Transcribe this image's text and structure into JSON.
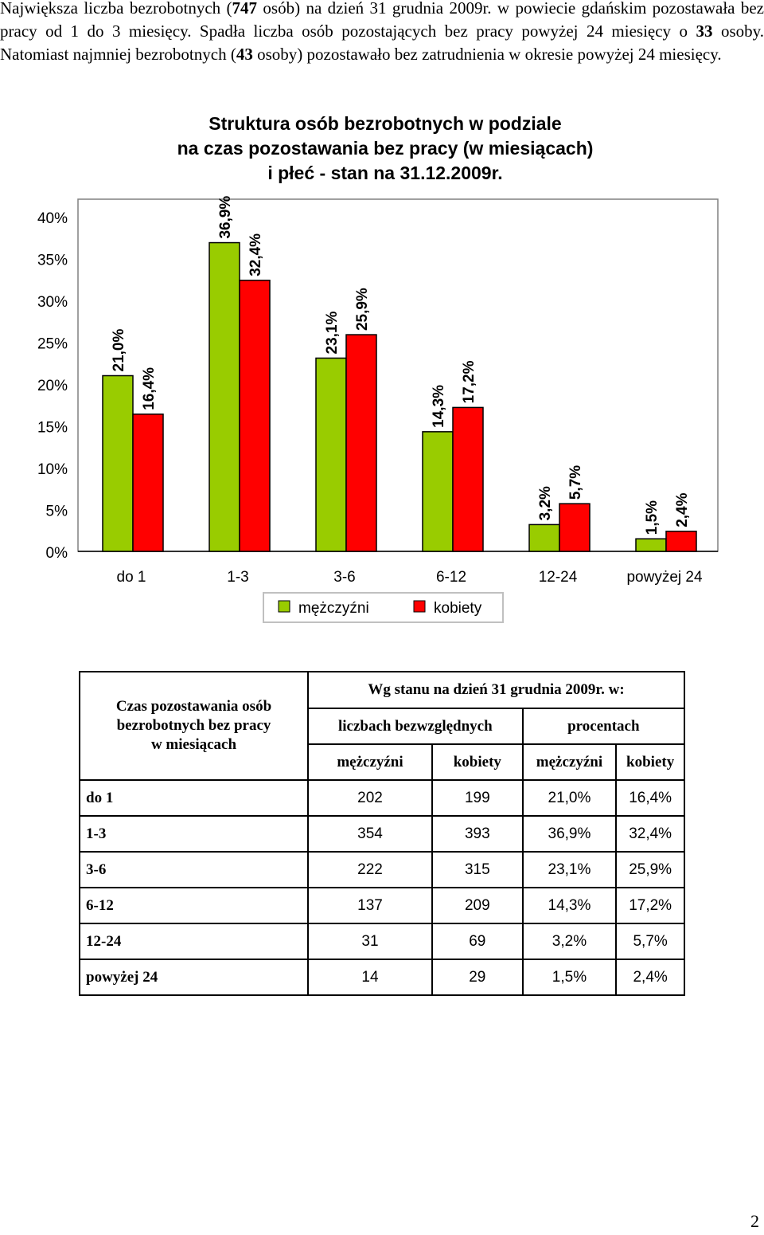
{
  "intro": {
    "line1_pre": "Największa liczba bezrobotnych (",
    "line1_bold": "747",
    "line1_post": " osób) na dzień 31 grudnia 2009r. w powiecie gdańskim pozostawała bez pracy od 1 do 3 miesięcy. Spadła liczba osób pozostających bez pracy powyżej 24 miesięcy o ",
    "line2_bold": "33",
    "line2_post": " osoby. Natomiast najmniej bezrobotnych (",
    "line3_bold": "43",
    "line3_post": " osoby) pozostawało bez zatrudnienia w okresie powyżej 24 miesięcy."
  },
  "chart_data": {
    "type": "bar",
    "title": [
      "Struktura osób bezrobotnych w podziale",
      "na czas pozostawania bez pracy (w miesiącach)",
      "i płeć - stan na 31.12.2009r."
    ],
    "categories": [
      "do 1",
      "1-3",
      "3-6",
      "6-12",
      "12-24",
      "powyżej 24"
    ],
    "series": [
      {
        "name": "mężczyźni",
        "color": "#99cc00",
        "values": [
          21.0,
          36.9,
          23.1,
          14.3,
          3.2,
          1.5
        ],
        "labels": [
          "21,0%",
          "36,9%",
          "23,1%",
          "14,3%",
          "3,2%",
          "1,5%"
        ]
      },
      {
        "name": "kobiety",
        "color": "#ff0000",
        "values": [
          16.4,
          32.4,
          25.9,
          17.2,
          5.7,
          2.4
        ],
        "labels": [
          "16,4%",
          "32,4%",
          "25,9%",
          "17,2%",
          "5,7%",
          "2,4%"
        ]
      }
    ],
    "yticks": [
      0,
      5,
      10,
      15,
      20,
      25,
      30,
      35,
      40
    ],
    "ytick_labels": [
      "0%",
      "5%",
      "10%",
      "15%",
      "20%",
      "25%",
      "30%",
      "35%",
      "40%"
    ],
    "ylim": [
      0,
      40
    ],
    "legend_position": "bottom",
    "grid": false
  },
  "table": {
    "header_left": [
      "Czas pozostawania osób",
      "bezrobotnych bez pracy",
      "w miesiącach"
    ],
    "header_main": "Wg stanu na dzień 31 grudnia 2009r. w:",
    "group_abs": "liczbach bezwzględnych",
    "group_pct": "procentach",
    "col_men": "mężczyźni",
    "col_women": "kobiety",
    "rows": [
      {
        "label": "do 1",
        "men": "202",
        "women": "199",
        "men_pct": "21,0%",
        "women_pct": "16,4%"
      },
      {
        "label": "1-3",
        "men": "354",
        "women": "393",
        "men_pct": "36,9%",
        "women_pct": "32,4%"
      },
      {
        "label": "3-6",
        "men": "222",
        "women": "315",
        "men_pct": "23,1%",
        "women_pct": "25,9%"
      },
      {
        "label": "6-12",
        "men": "137",
        "women": "209",
        "men_pct": "14,3%",
        "women_pct": "17,2%"
      },
      {
        "label": "12-24",
        "men": "31",
        "women": "69",
        "men_pct": "3,2%",
        "women_pct": "5,7%"
      },
      {
        "label": "powyżej 24",
        "men": "14",
        "women": "29",
        "men_pct": "1,5%",
        "women_pct": "2,4%"
      }
    ]
  },
  "page_number": "2"
}
